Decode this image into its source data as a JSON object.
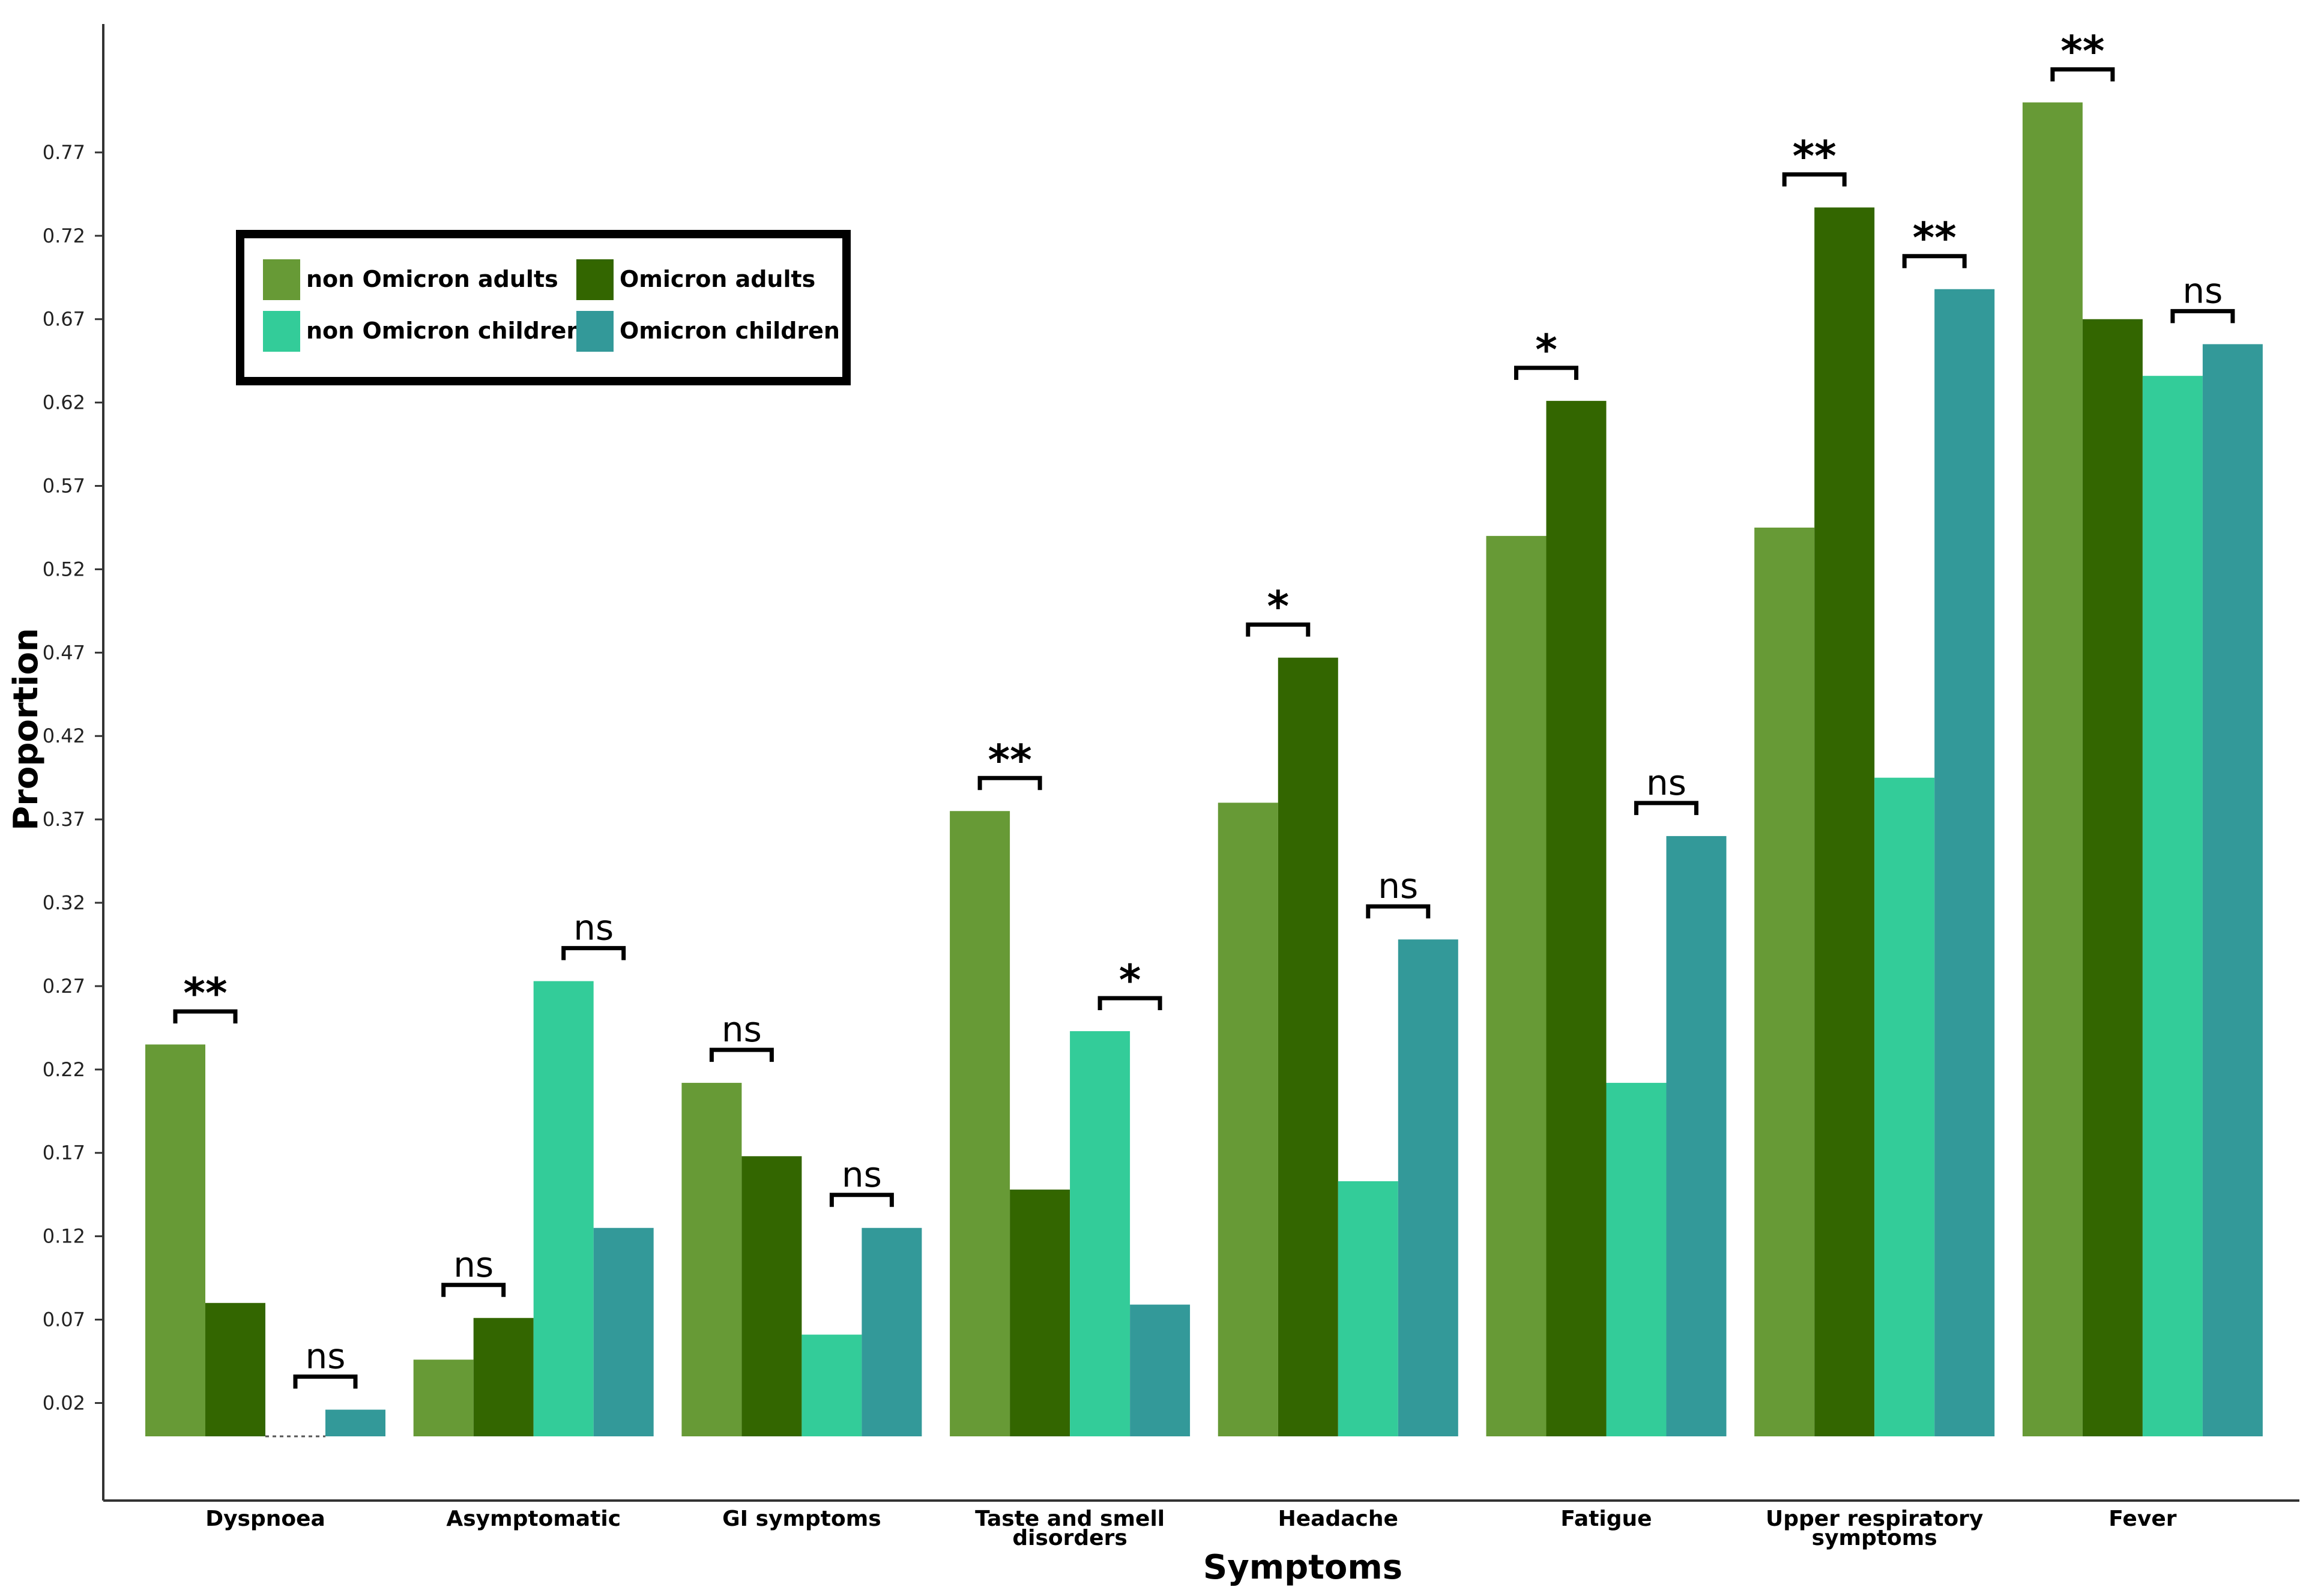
{
  "chart_data": {
    "type": "bar",
    "title": "",
    "xlabel": "Symptoms",
    "ylabel": "Proportion",
    "ylim": [
      -0.02,
      0.85
    ],
    "yticks": [
      "0.02",
      "0.07",
      "0.12",
      "0.17",
      "0.22",
      "0.27",
      "0.32",
      "0.37",
      "0.42",
      "0.47",
      "0.52",
      "0.57",
      "0.62",
      "0.67",
      "0.72",
      "0.77"
    ],
    "categories": [
      [
        "Dyspnoea"
      ],
      [
        "Asymptomatic"
      ],
      [
        "GI symptoms"
      ],
      [
        "Taste and smell",
        "disorders"
      ],
      [
        "Headache"
      ],
      [
        "Fatigue"
      ],
      [
        "Upper respiratory",
        "symptoms"
      ],
      [
        "Fever"
      ]
    ],
    "series": [
      {
        "name": "non Omicron adults",
        "color": "#679A36",
        "values": [
          0.235,
          0.046,
          0.212,
          0.375,
          0.38,
          0.54,
          0.545,
          0.8
        ]
      },
      {
        "name": "Omicron adults",
        "color": "#336600",
        "values": [
          0.08,
          0.071,
          0.168,
          0.148,
          0.467,
          0.621,
          0.737,
          0.67
        ]
      },
      {
        "name": "non Omicron children",
        "color": "#33CC99",
        "values": [
          0.0,
          0.273,
          0.061,
          0.243,
          0.153,
          0.212,
          0.395,
          0.636
        ]
      },
      {
        "name": "Omicron children",
        "color": "#339999",
        "values": [
          0.016,
          0.125,
          0.125,
          0.079,
          0.298,
          0.36,
          0.688,
          0.655
        ]
      }
    ],
    "significance": {
      "adults": [
        "**",
        "ns",
        "ns",
        "**",
        "*",
        "*",
        "**",
        "**"
      ],
      "children": [
        "ns",
        "ns",
        "ns",
        "*",
        "ns",
        "ns",
        "**",
        "ns"
      ]
    },
    "legend": {
      "position": "top-left"
    }
  }
}
